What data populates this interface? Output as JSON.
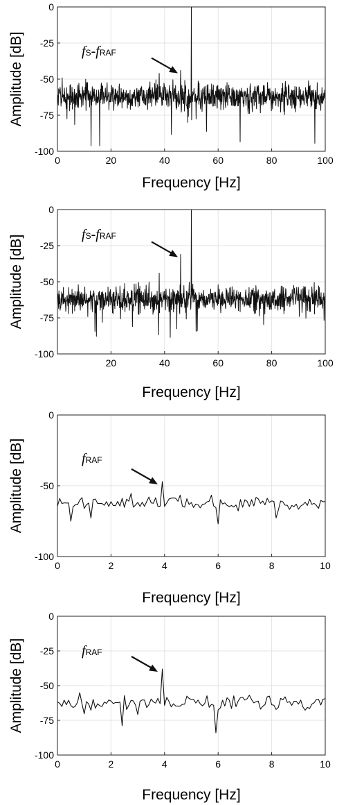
{
  "chart_data": [
    {
      "type": "line",
      "xlabel": "Frequency [Hz]",
      "ylabel": "Amplitude [dB]",
      "xlim": [
        0,
        100
      ],
      "ylim": [
        -100,
        0
      ],
      "xticks": [
        0,
        20,
        40,
        60,
        80,
        100
      ],
      "xtick_labels": [
        "0",
        "20",
        "40",
        "60",
        "80",
        "100"
      ],
      "yticks": [
        0,
        -25,
        -50,
        -75,
        -100
      ],
      "ytick_labels": [
        "0",
        "-25",
        "-50",
        "-75",
        "-100"
      ],
      "grid": true,
      "noise_floor_db": -62,
      "noise_span_db": [
        -98,
        -44
      ],
      "peaks": [
        {
          "x": 50,
          "y": 0
        },
        {
          "x": 46,
          "y": -44
        },
        {
          "x": 38,
          "y": -46
        }
      ],
      "annotation": {
        "parts": [
          {
            "text": "f",
            "sub": "S"
          },
          {
            "text": "-"
          },
          {
            "text": "f",
            "sub": "RAF"
          }
        ],
        "arrow_to": {
          "x": 46,
          "y": -44
        }
      }
    },
    {
      "type": "line",
      "xlabel": "Frequency [Hz]",
      "ylabel": "Amplitude [dB]",
      "xlim": [
        0,
        100
      ],
      "ylim": [
        -100,
        0
      ],
      "xticks": [
        20,
        40,
        60,
        80,
        100
      ],
      "xtick_labels": [
        "20",
        "40",
        "60",
        "80",
        "100"
      ],
      "yticks": [
        0,
        -25,
        -50,
        -75,
        -100
      ],
      "ytick_labels": [
        "0",
        "-25",
        "-50",
        "-75",
        "-100"
      ],
      "grid": true,
      "noise_floor_db": -62,
      "noise_span_db": [
        -89,
        -44
      ],
      "peaks": [
        {
          "x": 50,
          "y": 0
        },
        {
          "x": 46,
          "y": -31
        },
        {
          "x": 38,
          "y": -44
        }
      ],
      "annotation": {
        "parts": [
          {
            "text": "f",
            "sub": "S"
          },
          {
            "text": "-"
          },
          {
            "text": "f",
            "sub": "RAF"
          }
        ],
        "arrow_to": {
          "x": 46,
          "y": -31
        }
      }
    },
    {
      "type": "line",
      "xlabel": "Frequency [Hz]",
      "ylabel": "Amplitude [dB]",
      "xlim": [
        0,
        10
      ],
      "ylim": [
        -100,
        0
      ],
      "xticks": [
        0,
        2,
        4,
        6,
        8,
        10
      ],
      "xtick_labels": [
        "0",
        "2",
        "4",
        "6",
        "8",
        "10"
      ],
      "yticks": [
        0,
        -50,
        -100
      ],
      "ytick_labels": [
        "0",
        "-50",
        "-100"
      ],
      "grid": true,
      "noise_floor_db": -62,
      "noise_span_db": [
        -77,
        -52
      ],
      "peaks": [
        {
          "x": 3.9,
          "y": -47
        }
      ],
      "annotation": {
        "parts": [
          {
            "text": "f",
            "sub": "RAF"
          }
        ],
        "arrow_to": {
          "x": 3.85,
          "y": -47
        }
      }
    },
    {
      "type": "line",
      "xlabel": "Frequency [Hz]",
      "ylabel": "Amplitude [dB]",
      "xlim": [
        0,
        10
      ],
      "ylim": [
        -100,
        0
      ],
      "xticks": [
        0,
        2,
        4,
        6,
        8,
        10
      ],
      "xtick_labels": [
        "0",
        "2",
        "4",
        "6",
        "8",
        "10"
      ],
      "yticks": [
        0,
        -25,
        -50,
        -75,
        -100
      ],
      "ytick_labels": [
        "0",
        "-25",
        "-50",
        "-75",
        "-100"
      ],
      "grid": true,
      "noise_floor_db": -62,
      "noise_span_db": [
        -84,
        -52
      ],
      "peaks": [
        {
          "x": 3.9,
          "y": -38
        },
        {
          "x": 5.9,
          "y": -84
        }
      ],
      "annotation": {
        "parts": [
          {
            "text": "f",
            "sub": "RAF"
          }
        ],
        "arrow_to": {
          "x": 3.85,
          "y": -38
        }
      }
    }
  ]
}
